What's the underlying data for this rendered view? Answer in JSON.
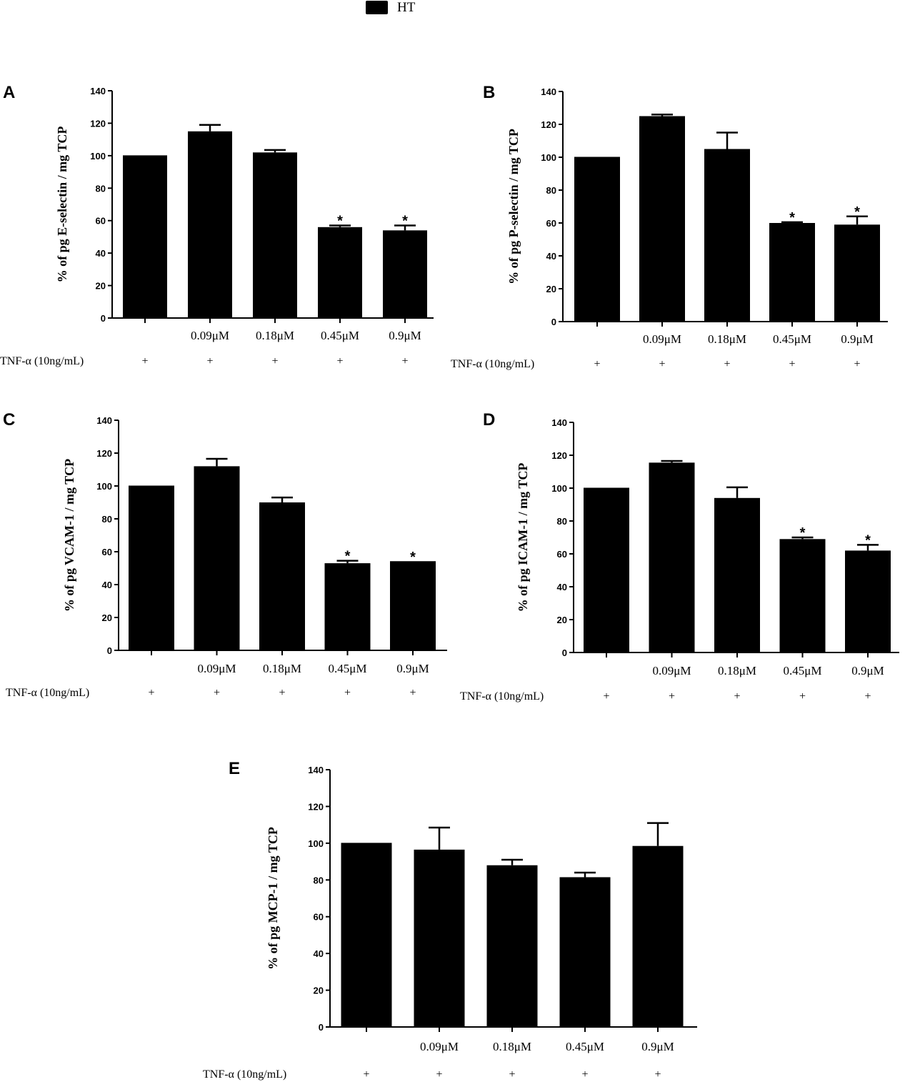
{
  "legend": {
    "label": "HT",
    "color": "#000000"
  },
  "chart_data": [
    {
      "panel": "A",
      "type": "bar",
      "categories": [
        "",
        "0.09μM",
        "0.18μM",
        "0.45μM",
        "0.9μM"
      ],
      "values": [
        100,
        115,
        102,
        56,
        54
      ],
      "errors": [
        0,
        4,
        1.5,
        1,
        3
      ],
      "significant": [
        "",
        "",
        "",
        "*",
        "*"
      ],
      "ylabel": "% of pg E-selectin / mg TCP",
      "ylim": [
        0,
        140
      ],
      "yticks": [
        0,
        20,
        40,
        60,
        80,
        100,
        120,
        140
      ],
      "treatment_label": "TNF-α (10ng/mL)",
      "treatment_marks": [
        "+",
        "+",
        "+",
        "+",
        "+"
      ],
      "color": "#000000"
    },
    {
      "panel": "B",
      "type": "bar",
      "categories": [
        "",
        "0.09μM",
        "0.18μM",
        "0.45μM",
        "0.9μM"
      ],
      "values": [
        100,
        125,
        105,
        60,
        59
      ],
      "errors": [
        0,
        1,
        10,
        0.5,
        5
      ],
      "significant": [
        "",
        "",
        "",
        "*",
        "*"
      ],
      "ylabel": "% of pg P-selectin / mg TCP",
      "ylim": [
        0,
        140
      ],
      "yticks": [
        0,
        20,
        40,
        60,
        80,
        100,
        120,
        140
      ],
      "treatment_label": "TNF-α (10ng/mL)",
      "treatment_marks": [
        "+",
        "+",
        "+",
        "+",
        "+"
      ],
      "color": "#000000"
    },
    {
      "panel": "C",
      "type": "bar",
      "categories": [
        "",
        "0.09μM",
        "0.18μM",
        "0.45μM",
        "0.9μM"
      ],
      "values": [
        100,
        112,
        90,
        53,
        54
      ],
      "errors": [
        0,
        4.5,
        3,
        1.5,
        0
      ],
      "significant": [
        "",
        "",
        "",
        "*",
        "*"
      ],
      "ylabel": "% of pg VCAM-1 / mg TCP",
      "ylim": [
        0,
        140
      ],
      "yticks": [
        0,
        20,
        40,
        60,
        80,
        100,
        120,
        140
      ],
      "treatment_label": "TNF-α (10ng/mL)",
      "treatment_marks": [
        "+",
        "+",
        "+",
        "+",
        "+"
      ],
      "color": "#000000"
    },
    {
      "panel": "D",
      "type": "bar",
      "categories": [
        "",
        "0.09μM",
        "0.18μM",
        "0.45μM",
        "0.9μM"
      ],
      "values": [
        100,
        115.5,
        94,
        69,
        62
      ],
      "errors": [
        0,
        1,
        6.5,
        1,
        3.5
      ],
      "significant": [
        "",
        "",
        "",
        "*",
        "*"
      ],
      "ylabel": "% of pg ICAM-1 / mg TCP",
      "ylim": [
        0,
        140
      ],
      "yticks": [
        0,
        20,
        40,
        60,
        80,
        100,
        120,
        140
      ],
      "treatment_label": "TNF-α (10ng/mL)",
      "treatment_marks": [
        "+",
        "+",
        "+",
        "+",
        "+"
      ],
      "color": "#000000"
    },
    {
      "panel": "E",
      "type": "bar",
      "categories": [
        "",
        "0.09μM",
        "0.18μM",
        "0.45μM",
        "0.9μM"
      ],
      "values": [
        100,
        96.5,
        88,
        81.5,
        98.5
      ],
      "errors": [
        0,
        12,
        3,
        2.5,
        12.5
      ],
      "significant": [
        "",
        "",
        "",
        "",
        ""
      ],
      "ylabel": "% of pg MCP-1 / mg TCP",
      "ylim": [
        0,
        140
      ],
      "yticks": [
        0,
        20,
        40,
        60,
        80,
        100,
        120,
        140
      ],
      "treatment_label": "TNF-α (10ng/mL)",
      "treatment_marks": [
        "+",
        "+",
        "+",
        "+",
        "+"
      ],
      "color": "#000000"
    }
  ]
}
